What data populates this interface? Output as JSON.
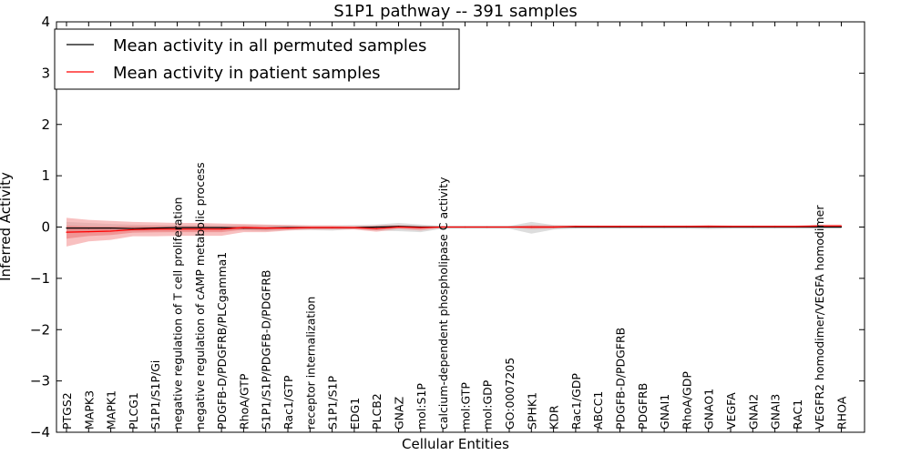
{
  "chart_data": {
    "type": "line",
    "title": "S1P1 pathway -- 391 samples",
    "xlabel": "Cellular Entities",
    "ylabel": "Inferred Activity",
    "ylim": [
      -4,
      4
    ],
    "yticks": [
      -4,
      -3,
      -2,
      -1,
      0,
      1,
      2,
      3,
      4
    ],
    "ytick_labels": [
      "−4",
      "−3",
      "−2",
      "−1",
      "0",
      "1",
      "2",
      "3",
      "4"
    ],
    "grid": false,
    "legend_position": "top-left",
    "categories": [
      "PTGS2",
      "MAPK3",
      "MAPK1",
      "PLCG1",
      "S1P1/S1P/Gi",
      "negative regulation of T cell proliferation",
      "negative regulation of cAMP metabolic process",
      "PDGFB-D/PDGFRB/PLCgamma1",
      "RhoA/GTP",
      "S1P1/S1P/PDGFB-D/PDGFRB",
      "Rac1/GTP",
      "receptor internalization",
      "S1P1/S1P",
      "EDG1",
      "PLCB2",
      "GNAZ",
      "mol:S1P",
      "calcium-dependent phospholipase C activity",
      "mol:GTP",
      "mol:GDP",
      "GO:0007205",
      "SPHK1",
      "KDR",
      "Rac1/GDP",
      "ABCC1",
      "PDGFB-D/PDGFRB",
      "PDGFRB",
      "GNAI1",
      "RhoA/GDP",
      "GNAO1",
      "VEGFA",
      "GNAI2",
      "GNAI3",
      "RAC1",
      "VEGFR2 homodimer/VEGFA homodimer",
      "RHOA"
    ],
    "series": [
      {
        "name": "Mean activity in all permuted samples",
        "color": "#000000",
        "values": [
          -0.02,
          -0.02,
          -0.02,
          -0.03,
          -0.02,
          -0.01,
          -0.01,
          -0.01,
          -0.02,
          -0.02,
          -0.01,
          -0.01,
          -0.01,
          -0.01,
          0.0,
          0.01,
          0.0,
          0.0,
          0.0,
          0.0,
          0.0,
          0.0,
          0.0,
          0.0,
          0.0,
          0.0,
          0.0,
          0.0,
          0.0,
          0.0,
          0.0,
          0.0,
          0.0,
          0.0,
          0.0,
          0.0
        ],
        "band_lower": [
          -0.12,
          -0.1,
          -0.08,
          -0.08,
          -0.07,
          -0.06,
          -0.05,
          -0.05,
          -0.07,
          -0.08,
          -0.06,
          -0.06,
          -0.07,
          -0.04,
          -0.07,
          -0.08,
          -0.1,
          -0.03,
          -0.03,
          -0.03,
          -0.03,
          -0.13,
          -0.05,
          -0.03,
          -0.03,
          -0.03,
          -0.03,
          -0.03,
          -0.03,
          -0.04,
          -0.03,
          -0.03,
          -0.03,
          -0.03,
          -0.03,
          -0.03
        ],
        "band_upper": [
          0.1,
          0.08,
          0.06,
          0.05,
          0.04,
          0.04,
          0.04,
          0.04,
          0.04,
          0.04,
          0.04,
          0.03,
          0.03,
          0.04,
          0.05,
          0.08,
          0.05,
          0.02,
          0.02,
          0.02,
          0.02,
          0.1,
          0.04,
          0.03,
          0.02,
          0.02,
          0.02,
          0.02,
          0.02,
          0.03,
          0.02,
          0.02,
          0.02,
          0.02,
          0.02,
          0.02
        ]
      },
      {
        "name": "Mean activity in patient samples",
        "color": "#ff0000",
        "values": [
          -0.1,
          -0.09,
          -0.08,
          -0.05,
          -0.04,
          -0.04,
          -0.04,
          -0.04,
          -0.01,
          -0.02,
          -0.02,
          -0.01,
          -0.01,
          -0.01,
          -0.03,
          0.0,
          -0.01,
          0.0,
          0.0,
          0.0,
          0.0,
          0.0,
          0.0,
          0.01,
          0.01,
          0.01,
          0.01,
          0.01,
          0.01,
          0.01,
          0.01,
          0.01,
          0.01,
          0.01,
          0.02,
          0.02
        ],
        "band_lower": [
          -0.38,
          -0.28,
          -0.25,
          -0.18,
          -0.18,
          -0.17,
          -0.17,
          -0.17,
          -0.1,
          -0.1,
          -0.07,
          -0.05,
          -0.05,
          -0.05,
          -0.09,
          -0.04,
          -0.07,
          -0.01,
          -0.01,
          -0.01,
          -0.01,
          -0.04,
          -0.03,
          0.0,
          0.0,
          0.0,
          0.0,
          0.0,
          0.0,
          -0.01,
          0.0,
          0.0,
          0.0,
          0.0,
          -0.01,
          -0.01
        ],
        "band_upper": [
          0.18,
          0.14,
          0.12,
          0.1,
          0.09,
          0.08,
          0.08,
          0.07,
          0.06,
          0.05,
          0.04,
          0.03,
          0.03,
          0.02,
          0.03,
          0.04,
          0.02,
          0.01,
          0.01,
          0.01,
          0.01,
          0.04,
          0.03,
          0.03,
          0.03,
          0.03,
          0.03,
          0.03,
          0.03,
          0.04,
          0.03,
          0.03,
          0.03,
          0.03,
          0.05,
          0.05
        ]
      }
    ]
  },
  "colors": {
    "permuted_band": "#b4b4b4",
    "patient_band": "#f28c8c",
    "patient_band_inner": "#e86a6a"
  }
}
